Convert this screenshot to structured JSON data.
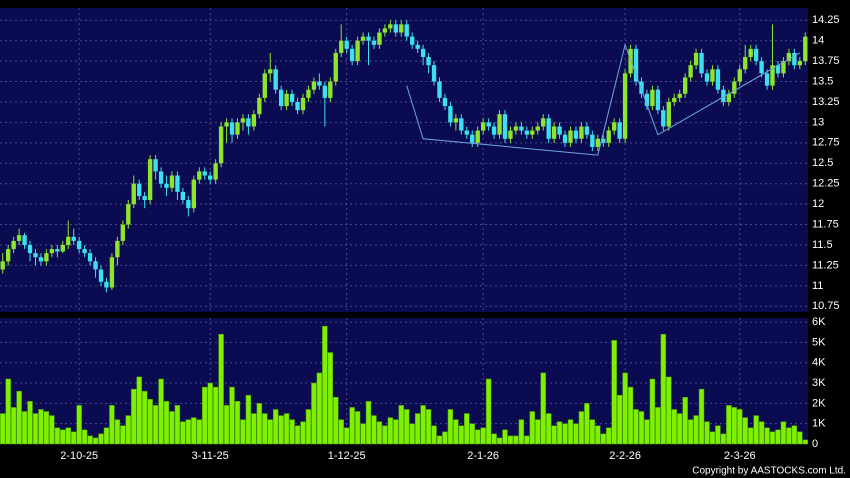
{
  "chart_data": {
    "type": "candlestick",
    "categories": [
      null,
      null,
      null,
      null,
      null,
      null,
      null,
      null,
      null,
      null,
      null,
      null,
      null,
      null,
      "2-10-25",
      null,
      null,
      null,
      null,
      null,
      null,
      null,
      null,
      null,
      null,
      null,
      null,
      null,
      null,
      null,
      null,
      null,
      null,
      null,
      null,
      null,
      null,
      null,
      "3-11-25",
      null,
      null,
      null,
      null,
      null,
      null,
      null,
      null,
      null,
      null,
      null,
      null,
      null,
      null,
      null,
      null,
      null,
      null,
      null,
      null,
      null,
      null,
      null,
      null,
      "1-12-25",
      null,
      null,
      null,
      null,
      null,
      null,
      null,
      null,
      null,
      null,
      null,
      null,
      null,
      null,
      null,
      null,
      null,
      null,
      null,
      null,
      null,
      null,
      null,
      null,
      "2-1-26",
      null,
      null,
      null,
      null,
      null,
      null,
      null,
      null,
      null,
      null,
      null,
      null,
      null,
      null,
      null,
      null,
      null,
      null,
      null,
      null,
      null,
      null,
      null,
      null,
      null,
      "2-2-26",
      null,
      null,
      null,
      null,
      null,
      null,
      null,
      null,
      null,
      null,
      null,
      null,
      null,
      null,
      null,
      null,
      null,
      null,
      null,
      null,
      "2-3-26",
      null,
      null,
      null,
      null,
      null,
      null,
      null,
      null,
      null,
      null,
      null,
      null
    ],
    "open": [
      11.2,
      11.3,
      11.45,
      11.55,
      11.62,
      11.5,
      11.4,
      11.35,
      11.3,
      11.4,
      11.45,
      11.42,
      11.5,
      11.6,
      11.55,
      11.45,
      11.4,
      11.3,
      11.2,
      11.05,
      10.98,
      11.35,
      11.55,
      11.75,
      12.0,
      12.25,
      12.1,
      12.05,
      12.55,
      12.4,
      12.25,
      12.2,
      12.35,
      12.15,
      12.05,
      11.95,
      12.3,
      12.4,
      12.35,
      12.3,
      12.5,
      12.95,
      13.0,
      12.85,
      13.0,
      13.05,
      12.95,
      13.1,
      13.3,
      13.6,
      13.65,
      13.4,
      13.2,
      13.35,
      13.25,
      13.15,
      13.3,
      13.4,
      13.5,
      13.45,
      13.3,
      13.5,
      13.85,
      14.0,
      13.9,
      13.75,
      14.0,
      14.05,
      14.0,
      13.95,
      14.1,
      14.15,
      14.2,
      14.1,
      14.2,
      14.05,
      13.95,
      13.9,
      13.8,
      13.7,
      13.5,
      13.3,
      13.2,
      13.0,
      13.05,
      12.9,
      12.85,
      12.75,
      12.9,
      13.0,
      12.95,
      12.85,
      13.1,
      12.8,
      12.9,
      12.95,
      12.9,
      12.85,
      12.9,
      12.95,
      13.05,
      12.8,
      12.95,
      12.85,
      12.75,
      12.9,
      12.8,
      12.95,
      12.85,
      12.7,
      12.8,
      12.75,
      12.9,
      13.0,
      12.8,
      13.6,
      13.9,
      13.5,
      13.35,
      13.2,
      13.4,
      13.15,
      12.95,
      13.25,
      13.3,
      13.35,
      13.55,
      13.7,
      13.85,
      13.6,
      13.5,
      13.65,
      13.4,
      13.25,
      13.35,
      13.5,
      13.65,
      13.8,
      13.9,
      13.75,
      13.6,
      13.45,
      13.7,
      13.6,
      13.75,
      13.85,
      13.7,
      13.75
    ],
    "high": [
      11.4,
      11.5,
      11.6,
      11.7,
      11.65,
      11.55,
      11.45,
      11.4,
      11.45,
      11.5,
      11.5,
      11.55,
      11.8,
      11.7,
      11.6,
      11.5,
      11.45,
      11.35,
      11.25,
      11.1,
      11.4,
      11.6,
      11.8,
      12.05,
      12.35,
      12.3,
      12.15,
      12.6,
      12.6,
      12.45,
      12.35,
      12.4,
      12.4,
      12.2,
      12.1,
      12.35,
      12.45,
      12.45,
      12.4,
      12.55,
      13.0,
      13.05,
      13.05,
      13.05,
      13.1,
      13.1,
      13.15,
      13.35,
      13.65,
      13.85,
      13.7,
      13.45,
      13.4,
      13.4,
      13.3,
      13.35,
      13.45,
      13.55,
      13.6,
      13.5,
      13.55,
      13.9,
      14.2,
      14.05,
      13.95,
      14.05,
      14.1,
      14.1,
      14.05,
      14.15,
      14.2,
      14.25,
      14.25,
      14.25,
      14.25,
      14.1,
      14.0,
      13.95,
      13.85,
      13.75,
      13.55,
      13.35,
      13.25,
      13.1,
      13.1,
      12.95,
      12.9,
      12.95,
      13.05,
      13.05,
      13.0,
      13.15,
      13.15,
      12.95,
      13.0,
      13.0,
      12.95,
      12.95,
      13.0,
      13.1,
      13.1,
      13.0,
      13.0,
      12.9,
      12.95,
      12.95,
      13.0,
      13.0,
      12.9,
      12.85,
      12.85,
      12.95,
      13.05,
      13.05,
      13.65,
      13.95,
      13.95,
      13.55,
      13.4,
      13.45,
      13.45,
      13.2,
      13.3,
      13.35,
      13.4,
      13.6,
      13.75,
      13.9,
      13.9,
      13.65,
      13.7,
      13.7,
      13.45,
      13.4,
      13.55,
      13.7,
      13.95,
      13.95,
      13.95,
      13.8,
      13.65,
      14.2,
      13.75,
      13.8,
      13.9,
      13.9,
      13.8,
      14.1
    ],
    "low": [
      11.15,
      11.25,
      11.4,
      11.5,
      11.45,
      11.3,
      11.25,
      11.25,
      11.25,
      11.35,
      11.35,
      11.4,
      11.45,
      11.5,
      11.4,
      11.35,
      11.25,
      11.1,
      11.0,
      10.92,
      10.95,
      11.25,
      11.5,
      11.7,
      11.95,
      12.05,
      11.95,
      12.0,
      12.3,
      12.2,
      12.1,
      12.15,
      12.05,
      12.0,
      11.85,
      11.9,
      12.25,
      12.3,
      12.25,
      12.25,
      12.45,
      12.75,
      12.75,
      12.8,
      12.9,
      12.85,
      12.9,
      13.05,
      13.25,
      13.5,
      13.35,
      13.15,
      13.15,
      13.2,
      13.1,
      13.1,
      13.25,
      13.35,
      13.4,
      12.95,
      13.25,
      13.45,
      13.8,
      13.85,
      13.7,
      13.7,
      13.95,
      13.7,
      13.9,
      13.9,
      14.05,
      14.1,
      14.05,
      14.05,
      14.0,
      13.9,
      13.85,
      13.7,
      13.6,
      13.45,
      13.25,
      13.15,
      12.95,
      12.9,
      12.85,
      12.8,
      12.7,
      12.7,
      12.85,
      12.9,
      12.8,
      12.8,
      12.75,
      12.75,
      12.85,
      12.85,
      12.8,
      12.8,
      12.85,
      12.9,
      12.75,
      12.75,
      12.8,
      12.7,
      12.7,
      12.75,
      12.75,
      12.8,
      12.65,
      12.65,
      12.7,
      12.7,
      12.85,
      12.75,
      12.75,
      13.55,
      13.45,
      13.3,
      13.15,
      13.15,
      13.1,
      12.9,
      12.9,
      13.2,
      13.25,
      13.3,
      13.5,
      13.65,
      13.55,
      13.45,
      13.45,
      13.35,
      13.2,
      13.2,
      13.3,
      13.45,
      13.6,
      13.75,
      13.7,
      13.55,
      13.4,
      13.4,
      13.55,
      13.55,
      13.7,
      13.65,
      13.65,
      13.7
    ],
    "close": [
      11.3,
      11.45,
      11.55,
      11.62,
      11.5,
      11.4,
      11.35,
      11.3,
      11.4,
      11.45,
      11.42,
      11.5,
      11.6,
      11.55,
      11.45,
      11.4,
      11.3,
      11.2,
      11.05,
      10.98,
      11.35,
      11.55,
      11.75,
      12.0,
      12.25,
      12.1,
      12.05,
      12.55,
      12.4,
      12.25,
      12.2,
      12.35,
      12.15,
      12.05,
      11.95,
      12.3,
      12.4,
      12.35,
      12.3,
      12.5,
      12.95,
      13.0,
      12.85,
      13.0,
      13.05,
      12.95,
      13.1,
      13.3,
      13.6,
      13.65,
      13.4,
      13.2,
      13.35,
      13.25,
      13.15,
      13.3,
      13.4,
      13.5,
      13.45,
      13.3,
      13.5,
      13.85,
      14.0,
      13.9,
      13.75,
      14.0,
      14.05,
      14.0,
      13.95,
      14.1,
      14.15,
      14.2,
      14.1,
      14.2,
      14.05,
      13.95,
      13.9,
      13.8,
      13.7,
      13.5,
      13.3,
      13.2,
      13.0,
      13.05,
      12.9,
      12.85,
      12.75,
      12.9,
      13.0,
      12.95,
      12.85,
      13.1,
      12.8,
      12.9,
      12.95,
      12.9,
      12.85,
      12.9,
      12.95,
      13.05,
      12.8,
      12.95,
      12.85,
      12.75,
      12.9,
      12.8,
      12.95,
      12.85,
      12.7,
      12.8,
      12.75,
      12.9,
      13.0,
      12.8,
      13.6,
      13.9,
      13.5,
      13.35,
      13.2,
      13.4,
      13.15,
      12.95,
      13.25,
      13.3,
      13.35,
      13.55,
      13.7,
      13.85,
      13.6,
      13.5,
      13.65,
      13.4,
      13.25,
      13.35,
      13.5,
      13.65,
      13.8,
      13.9,
      13.75,
      13.6,
      13.45,
      13.7,
      13.6,
      13.75,
      13.85,
      13.7,
      13.75,
      14.05
    ],
    "up_color": "#8ee52b",
    "down_color": "#3de0ee",
    "ylim": [
      10.68,
      14.4
    ],
    "yticks": [
      10.75,
      11,
      11.25,
      11.5,
      11.75,
      12,
      12.25,
      12.5,
      12.75,
      13,
      13.25,
      13.5,
      13.75,
      14,
      14.25
    ],
    "grid": true,
    "trendline": {
      "color": "#6fa8dc",
      "points": [
        [
          74,
          13.45
        ],
        [
          77,
          12.8
        ],
        [
          109,
          12.6
        ],
        [
          114,
          13.95
        ],
        [
          120,
          12.85
        ],
        [
          146,
          13.85
        ]
      ]
    },
    "volume": {
      "color": "#7ff000",
      "values": [
        1500,
        3200,
        1800,
        2600,
        1600,
        2100,
        1500,
        1700,
        1600,
        1400,
        800,
        700,
        800,
        600,
        1900,
        700,
        400,
        300,
        500,
        800,
        1900,
        1200,
        900,
        1400,
        2700,
        3300,
        2600,
        2200,
        1900,
        3200,
        2100,
        1600,
        1900,
        1100,
        1200,
        1300,
        1200,
        2800,
        3000,
        2800,
        5400,
        1900,
        2800,
        2100,
        1200,
        2400,
        1500,
        2000,
        1500,
        1200,
        1700,
        1400,
        1500,
        1200,
        900,
        1100,
        1700,
        3000,
        3500,
        5800,
        4500,
        2300,
        1200,
        800,
        1800,
        1600,
        1000,
        2100,
        1400,
        1100,
        900,
        1300,
        1200,
        1900,
        1700,
        1000,
        1500,
        1900,
        1700,
        900,
        400,
        600,
        1700,
        1200,
        900,
        1500,
        1000,
        700,
        800,
        3200,
        500,
        300,
        700,
        400,
        400,
        1200,
        400,
        1600,
        1200,
        3500,
        1500,
        900,
        1100,
        1000,
        1200,
        1000,
        1600,
        2000,
        1200,
        900,
        500,
        800,
        5100,
        2400,
        3500,
        2800,
        1700,
        1600,
        1200,
        3200,
        1800,
        5400,
        3300,
        1700,
        1500,
        2300,
        1200,
        1400,
        2700,
        1100,
        600,
        900,
        500,
        1900,
        1800,
        1700,
        1300,
        800,
        1400,
        1100,
        800,
        600,
        700,
        1100,
        800,
        900,
        600,
        200
      ],
      "ylim": [
        0,
        6200
      ],
      "yticks": [
        0,
        {
          "value": 1000,
          "label": "1K"
        },
        {
          "value": 2000,
          "label": "2K"
        },
        {
          "value": 3000,
          "label": "3K"
        },
        {
          "value": 4000,
          "label": "4K"
        },
        {
          "value": 5000,
          "label": "5K"
        },
        {
          "value": 6000,
          "label": "6K"
        }
      ]
    }
  },
  "footer": "Copyright by AASTOCKS.com Ltd."
}
